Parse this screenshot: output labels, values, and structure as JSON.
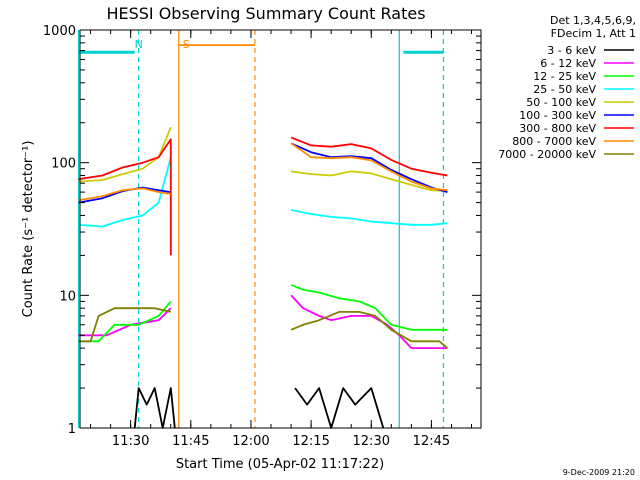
{
  "chart_data": {
    "type": "line",
    "title": "HESSI Observing Summary Count Rates",
    "xlabel": "Start Time (05-Apr-02 11:17:22)",
    "ylabel": "Count Rate (s⁻¹ detector⁻¹)",
    "yscale": "log",
    "ylim": [
      1,
      1000
    ],
    "xlim": [
      "11:17:22",
      "12:57:22"
    ],
    "x_ticks": [
      "11:30",
      "11:45",
      "12:00",
      "12:15",
      "12:30",
      "12:45"
    ],
    "y_ticks": [
      "1",
      "10",
      "100",
      "1000"
    ],
    "legend": {
      "placement": "right",
      "header": [
        "Det 1,3,4,5,6,9,",
        "FDecim 1, Att 1"
      ]
    },
    "series": [
      {
        "name": "3 - 6 keV",
        "color": "#000000",
        "segments": [
          [
            [
              "11:31",
              1
            ],
            [
              "11:32",
              2
            ],
            [
              "11:34",
              1.5
            ],
            [
              "11:36",
              2
            ],
            [
              "11:38",
              1
            ],
            [
              "11:40",
              2
            ],
            [
              "11:41",
              1
            ]
          ],
          [
            [
              "12:11",
              2
            ],
            [
              "12:14",
              1.5
            ],
            [
              "12:17",
              2
            ],
            [
              "12:20",
              1
            ],
            [
              "12:23",
              2
            ],
            [
              "12:26",
              1.5
            ],
            [
              "12:30",
              2
            ],
            [
              "12:33",
              1
            ]
          ]
        ]
      },
      {
        "name": "6 - 12 keV",
        "color": "#ff00ff",
        "segments": [
          [
            [
              "11:17",
              5
            ],
            [
              "11:24",
              5
            ],
            [
              "11:30",
              6
            ],
            [
              "11:37",
              6.5
            ],
            [
              "11:40",
              8
            ]
          ],
          [
            [
              "12:10",
              10
            ],
            [
              "12:13",
              8
            ],
            [
              "12:17",
              7
            ],
            [
              "12:20",
              6.5
            ],
            [
              "12:25",
              7
            ],
            [
              "12:30",
              7
            ],
            [
              "12:34",
              6
            ],
            [
              "12:37",
              5
            ],
            [
              "12:40",
              4
            ],
            [
              "12:47",
              4
            ],
            [
              "12:49",
              4
            ]
          ]
        ]
      },
      {
        "name": "12 - 25 keV",
        "color": "#00ff00",
        "segments": [
          [
            [
              "11:17",
              4.5
            ],
            [
              "11:22",
              4.5
            ],
            [
              "11:26",
              6
            ],
            [
              "11:32",
              6
            ],
            [
              "11:37",
              7
            ],
            [
              "11:40",
              9
            ]
          ],
          [
            [
              "12:10",
              12
            ],
            [
              "12:13",
              11
            ],
            [
              "12:17",
              10.5
            ],
            [
              "12:22",
              9.5
            ],
            [
              "12:27",
              9
            ],
            [
              "12:31",
              8
            ],
            [
              "12:35",
              6
            ],
            [
              "12:40",
              5.5
            ],
            [
              "12:47",
              5.5
            ],
            [
              "12:49",
              5.5
            ]
          ]
        ]
      },
      {
        "name": "25 - 50 keV",
        "color": "#00ffff",
        "segments": [
          [
            [
              "11:17",
              34
            ],
            [
              "11:23",
              33
            ],
            [
              "11:28",
              37
            ],
            [
              "11:33",
              40
            ],
            [
              "11:37",
              50
            ],
            [
              "11:40",
              110
            ]
          ],
          [
            [
              "12:10",
              44
            ],
            [
              "12:15",
              41
            ],
            [
              "12:20",
              39
            ],
            [
              "12:25",
              38
            ],
            [
              "12:30",
              36
            ],
            [
              "12:35",
              35
            ],
            [
              "12:40",
              34
            ],
            [
              "12:45",
              34
            ],
            [
              "12:49",
              35
            ]
          ]
        ]
      },
      {
        "name": "50 - 100 keV",
        "color": "#cccc00",
        "segments": [
          [
            [
              "11:17",
              72
            ],
            [
              "11:23",
              74
            ],
            [
              "11:28",
              82
            ],
            [
              "11:33",
              90
            ],
            [
              "11:37",
              110
            ],
            [
              "11:40",
              185
            ]
          ],
          [
            [
              "12:10",
              86
            ],
            [
              "12:15",
              82
            ],
            [
              "12:20",
              80
            ],
            [
              "12:25",
              86
            ],
            [
              "12:30",
              83
            ],
            [
              "12:35",
              75
            ],
            [
              "12:40",
              68
            ],
            [
              "12:45",
              62
            ],
            [
              "12:49",
              61
            ]
          ]
        ]
      },
      {
        "name": "100 - 300 keV",
        "color": "#0000ff",
        "segments": [
          [
            [
              "11:17",
              50
            ],
            [
              "11:23",
              54
            ],
            [
              "11:28",
              61
            ],
            [
              "11:33",
              65
            ],
            [
              "11:37",
              62
            ],
            [
              "11:40",
              60
            ]
          ],
          [
            [
              "12:10",
              140
            ],
            [
              "12:15",
              120
            ],
            [
              "12:20",
              110
            ],
            [
              "12:25",
              112
            ],
            [
              "12:30",
              108
            ],
            [
              "12:35",
              88
            ],
            [
              "12:40",
              75
            ],
            [
              "12:45",
              65
            ],
            [
              "12:49",
              60
            ]
          ]
        ]
      },
      {
        "name": "300 - 800 keV",
        "color": "#ff0000",
        "segments": [
          [
            [
              "11:17",
              75
            ],
            [
              "11:23",
              80
            ],
            [
              "11:28",
              92
            ],
            [
              "11:33",
              100
            ],
            [
              "11:37",
              110
            ],
            [
              "11:40",
              150
            ],
            [
              "11:40",
              20
            ]
          ],
          [
            [
              "12:10",
              155
            ],
            [
              "12:15",
              135
            ],
            [
              "12:20",
              132
            ],
            [
              "12:25",
              138
            ],
            [
              "12:30",
              128
            ],
            [
              "12:35",
              105
            ],
            [
              "12:40",
              90
            ],
            [
              "12:45",
              84
            ],
            [
              "12:49",
              80
            ]
          ]
        ]
      },
      {
        "name": "800 - 7000 keV",
        "color": "#ff8c00",
        "segments": [
          [
            [
              "11:17",
              52
            ],
            [
              "11:23",
              56
            ],
            [
              "11:28",
              62
            ],
            [
              "11:33",
              64
            ],
            [
              "11:37",
              60
            ],
            [
              "11:40",
              58
            ]
          ],
          [
            [
              "11:42",
              770
            ],
            [
              "12:01",
              770
            ]
          ],
          [
            [
              "12:10",
              140
            ],
            [
              "12:15",
              110
            ],
            [
              "12:20",
              108
            ],
            [
              "12:25",
              110
            ],
            [
              "12:30",
              104
            ],
            [
              "12:35",
              86
            ],
            [
              "12:40",
              72
            ],
            [
              "12:45",
              64
            ],
            [
              "12:49",
              62
            ]
          ]
        ]
      },
      {
        "name": "7000 - 20000 keV",
        "color": "#808000",
        "segments": [
          [
            [
              "11:17",
              4.5
            ],
            [
              "11:20",
              4.5
            ],
            [
              "11:22",
              7
            ],
            [
              "11:26",
              8
            ],
            [
              "11:32",
              8
            ],
            [
              "11:36",
              8
            ],
            [
              "11:40",
              7.5
            ]
          ],
          [
            [
              "12:10",
              5.5
            ],
            [
              "12:13",
              6
            ],
            [
              "12:17",
              6.5
            ],
            [
              "12:22",
              7.5
            ],
            [
              "12:27",
              7.5
            ],
            [
              "12:31",
              7
            ],
            [
              "12:35",
              5.5
            ],
            [
              "12:40",
              4.5
            ],
            [
              "12:47",
              4.5
            ],
            [
              "12:49",
              4
            ]
          ]
        ]
      }
    ],
    "annotations": [
      {
        "text": "N",
        "time": "11:30",
        "color": "#00d0d0"
      },
      {
        "text": "S",
        "time": "11:42",
        "color": "#ff8c00"
      }
    ],
    "markers": [
      {
        "time": "11:17",
        "color": "#00d0d0",
        "style": "solid"
      },
      {
        "time": "11:32",
        "color": "#00d0d0",
        "style": "dashed"
      },
      {
        "time": "11:42",
        "color": "#ff8c00",
        "style": "solid"
      },
      {
        "time": "12:01",
        "color": "#ff8c00",
        "style": "dashed"
      },
      {
        "time": "12:37",
        "color": "#00d0d0",
        "style": "solid"
      },
      {
        "time": "12:48",
        "color": "#00d0d0",
        "style": "dashed"
      }
    ],
    "bars": [
      {
        "from": "11:17",
        "to": "11:31",
        "value": 680,
        "color": "#00d0d0"
      },
      {
        "from": "12:38",
        "to": "12:48",
        "value": 680,
        "color": "#00d0d0"
      }
    ],
    "footer_date": "9-Dec-2009 21:20"
  }
}
